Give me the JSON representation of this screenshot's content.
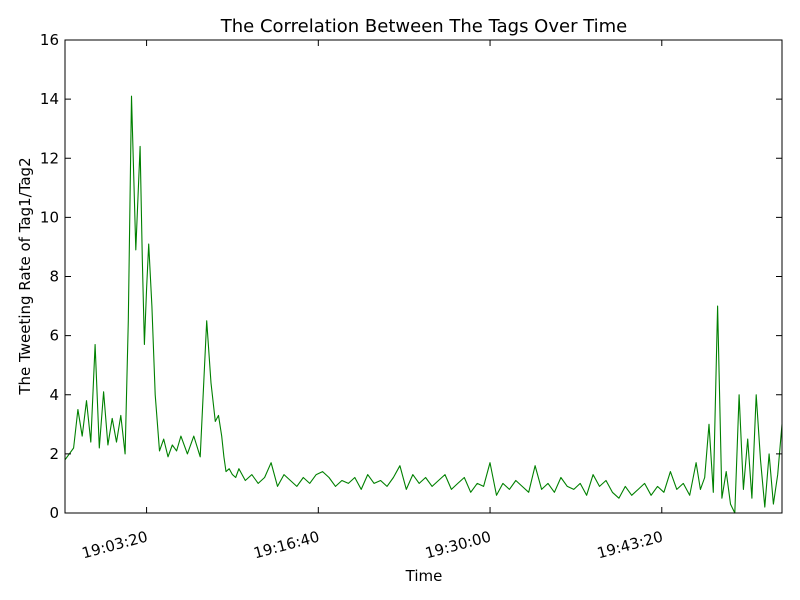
{
  "chart_data": {
    "type": "line",
    "title": "The Correlation Between The Tags Over Time",
    "xlabel": "Time",
    "ylabel": "The Tweeting Rate of Tag1/Tag2",
    "xlim": [
      "18:57:00",
      "19:52:40"
    ],
    "ylim": [
      0,
      16
    ],
    "x_ticks": [
      "19:03:20",
      "19:16:40",
      "19:30:00",
      "19:43:20"
    ],
    "y_ticks": [
      0,
      2,
      4,
      6,
      8,
      10,
      12,
      14,
      16
    ],
    "grid": false,
    "colors": {
      "series": "#008000",
      "axes": "#000000",
      "background": "#ffffff"
    },
    "series": [
      {
        "x": [
          "18:57:00",
          "18:57:20",
          "18:57:40",
          "18:58:00",
          "18:58:20",
          "18:58:40",
          "18:59:00",
          "18:59:20",
          "18:59:40",
          "19:00:00",
          "19:00:20",
          "19:00:40",
          "19:01:00",
          "19:01:20",
          "19:01:40",
          "19:01:55",
          "19:02:10",
          "19:02:30",
          "19:02:50",
          "19:03:00",
          "19:03:10",
          "19:03:20",
          "19:03:30",
          "19:03:45",
          "19:04:00",
          "19:04:20",
          "19:04:40",
          "19:05:00",
          "19:05:20",
          "19:05:40",
          "19:06:00",
          "19:06:30",
          "19:07:00",
          "19:07:30",
          "19:08:00",
          "19:08:20",
          "19:08:40",
          "19:08:55",
          "19:09:10",
          "19:09:20",
          "19:09:30",
          "19:09:45",
          "19:10:00",
          "19:10:15",
          "19:10:30",
          "19:11:00",
          "19:11:30",
          "19:12:00",
          "19:12:30",
          "19:13:00",
          "19:13:30",
          "19:14:00",
          "19:14:30",
          "19:15:00",
          "19:15:30",
          "19:16:00",
          "19:16:30",
          "19:17:00",
          "19:17:30",
          "19:18:00",
          "19:18:30",
          "19:19:00",
          "19:19:30",
          "19:20:00",
          "19:20:30",
          "19:21:00",
          "19:21:30",
          "19:22:00",
          "19:22:30",
          "19:23:00",
          "19:23:30",
          "19:24:00",
          "19:24:30",
          "19:25:00",
          "19:25:30",
          "19:26:00",
          "19:26:30",
          "19:27:00",
          "19:27:30",
          "19:28:00",
          "19:28:30",
          "19:29:00",
          "19:29:30",
          "19:30:00",
          "19:30:30",
          "19:31:00",
          "19:31:30",
          "19:32:00",
          "19:32:30",
          "19:33:00",
          "19:33:30",
          "19:34:00",
          "19:34:30",
          "19:35:00",
          "19:35:30",
          "19:36:00",
          "19:36:30",
          "19:37:00",
          "19:37:30",
          "19:38:00",
          "19:38:30",
          "19:39:00",
          "19:39:30",
          "19:40:00",
          "19:40:30",
          "19:41:00",
          "19:41:30",
          "19:42:00",
          "19:42:30",
          "19:43:00",
          "19:43:30",
          "19:44:00",
          "19:44:30",
          "19:45:00",
          "19:45:30",
          "19:46:00",
          "19:46:20",
          "19:46:40",
          "19:47:00",
          "19:47:20",
          "19:47:40",
          "19:48:00",
          "19:48:20",
          "19:48:40",
          "19:49:00",
          "19:49:20",
          "19:49:40",
          "19:50:00",
          "19:50:20",
          "19:50:40",
          "19:51:00",
          "19:51:20",
          "19:51:40",
          "19:52:00",
          "19:52:20",
          "19:52:40"
        ],
        "y": [
          1.8,
          2.0,
          2.2,
          3.5,
          2.6,
          3.8,
          2.4,
          5.7,
          2.2,
          4.1,
          2.3,
          3.2,
          2.4,
          3.3,
          2.0,
          6.5,
          14.1,
          8.9,
          12.4,
          8.6,
          5.7,
          7.6,
          9.1,
          7.0,
          4.0,
          2.1,
          2.5,
          1.9,
          2.3,
          2.1,
          2.6,
          2.0,
          2.6,
          1.9,
          6.5,
          4.4,
          3.1,
          3.3,
          2.6,
          1.9,
          1.4,
          1.5,
          1.3,
          1.2,
          1.5,
          1.1,
          1.3,
          1.0,
          1.2,
          1.7,
          0.9,
          1.3,
          1.1,
          0.9,
          1.2,
          1.0,
          1.3,
          1.4,
          1.2,
          0.9,
          1.1,
          1.0,
          1.2,
          0.8,
          1.3,
          1.0,
          1.1,
          0.9,
          1.2,
          1.6,
          0.8,
          1.3,
          1.0,
          1.2,
          0.9,
          1.1,
          1.3,
          0.8,
          1.0,
          1.2,
          0.7,
          1.0,
          0.9,
          1.7,
          0.6,
          1.0,
          0.8,
          1.1,
          0.9,
          0.7,
          1.6,
          0.8,
          1.0,
          0.7,
          1.2,
          0.9,
          0.8,
          1.0,
          0.6,
          1.3,
          0.9,
          1.1,
          0.7,
          0.5,
          0.9,
          0.6,
          0.8,
          1.0,
          0.6,
          0.9,
          0.7,
          1.4,
          0.8,
          1.0,
          0.6,
          1.7,
          0.8,
          1.2,
          3.0,
          0.7,
          7.0,
          0.5,
          1.4,
          0.3,
          0.0,
          4.0,
          0.8,
          2.5,
          0.5,
          4.0,
          1.8,
          0.2,
          2.0,
          0.3,
          1.3,
          3.0
        ]
      }
    ]
  }
}
